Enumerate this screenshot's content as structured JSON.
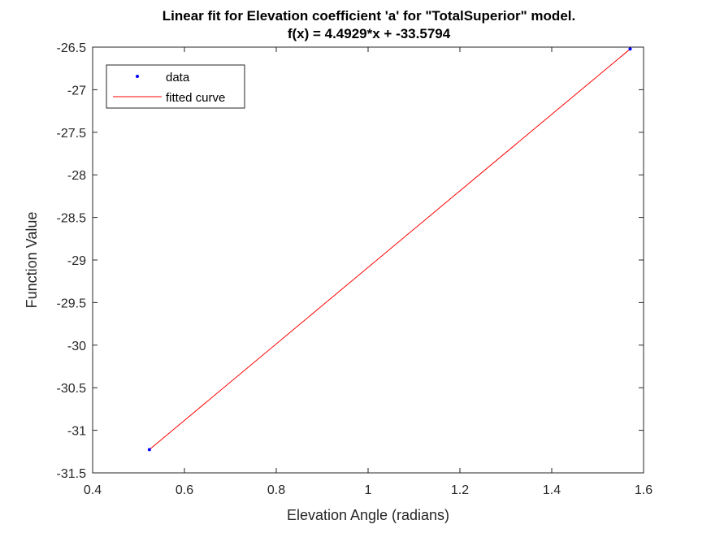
{
  "chart_data": {
    "type": "line",
    "title": "Linear fit for Elevation coefficient 'a' for \"TotalSuperior\" model.",
    "subtitle": "f(x) = 4.4929*x + -33.5794",
    "xlabel": "Elevation Angle (radians)",
    "ylabel": "Function Value",
    "xlim": [
      0.4,
      1.6
    ],
    "ylim": [
      -31.5,
      -26.5
    ],
    "xticks": [
      0.4,
      0.6,
      0.8,
      1,
      1.2,
      1.4,
      1.6
    ],
    "xtick_labels": [
      "0.4",
      "0.6",
      "0.8",
      "1",
      "1.2",
      "1.4",
      "1.6"
    ],
    "yticks": [
      -31.5,
      -31,
      -30.5,
      -30,
      -29.5,
      -29,
      -28.5,
      -28,
      -27.5,
      -27,
      -26.5
    ],
    "ytick_labels": [
      "-31.5",
      "-31",
      "-30.5",
      "-30",
      "-29.5",
      "-29",
      "-28.5",
      "-28",
      "-27.5",
      "-27",
      "-26.5"
    ],
    "grid": false,
    "legend_position": "top-left",
    "series": [
      {
        "name": "data",
        "kind": "points",
        "color": "#0000ff",
        "x": [
          0.5236,
          1.5708
        ],
        "y": [
          -31.2269,
          -26.522
        ]
      },
      {
        "name": "fitted curve",
        "kind": "line",
        "color": "#ff0000",
        "x": [
          0.5236,
          1.5708
        ],
        "y": [
          -31.2269,
          -26.522
        ]
      }
    ]
  }
}
